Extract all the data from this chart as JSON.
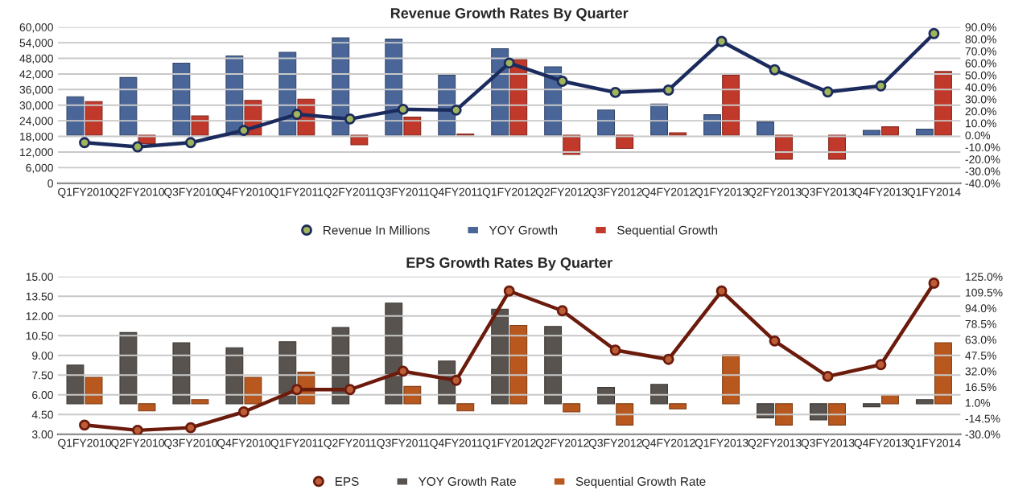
{
  "chart_data": [
    {
      "type": "bar",
      "title": "Revenue Growth Rates By Quarter",
      "categories": [
        "Q1FY2010",
        "Q2FY2010",
        "Q3FY2010",
        "Q4FY2010",
        "Q1FY2011",
        "Q2FY2011",
        "Q3FY2011",
        "Q4FY2011",
        "Q1FY2012",
        "Q2FY2012",
        "Q3FY2012",
        "Q4FY2012",
        "Q1FY2013",
        "Q2FY2013",
        "Q3FY2013",
        "Q4FY2013",
        "Q1FY2014"
      ],
      "series": [
        {
          "name": "Revenue In Millions",
          "type": "line",
          "color": "#1b2b5e",
          "values": [
            15600,
            14000,
            15600,
            20300,
            26500,
            24700,
            28400,
            28100,
            46200,
            39200,
            34900,
            35800,
            54500,
            43600,
            35100,
            37400,
            57500
          ]
        },
        {
          "name": "YOY Growth",
          "axis": "y2",
          "color": "#4a6699",
          "values": [
            32,
            48,
            60,
            66,
            69,
            81,
            80,
            50,
            72,
            57,
            21,
            26,
            17,
            11,
            null,
            4,
            5
          ]
        },
        {
          "name": "Sequential Growth",
          "axis": "y2",
          "color": "#c0392b",
          "values": [
            28,
            -7,
            16,
            29,
            30,
            -8,
            15,
            1,
            63,
            -16,
            -11,
            2,
            50,
            -20,
            -20,
            7,
            53
          ]
        }
      ],
      "ylim": [
        0,
        60000
      ],
      "yticks": [
        0,
        {
          "value": 6000,
          "label": "6,000"
        },
        {
          "value": 12000,
          "label": "12,000"
        },
        {
          "value": 18000,
          "label": "18,000"
        },
        {
          "value": 24000,
          "label": "24,000"
        },
        {
          "value": 30000,
          "label": "30,000"
        },
        {
          "value": 36000,
          "label": "36,000"
        },
        {
          "value": 42000,
          "label": "42,000"
        },
        {
          "value": 48000,
          "label": "48,000"
        },
        {
          "value": 54000,
          "label": "54,000"
        },
        {
          "value": 60000,
          "label": "60,000"
        }
      ],
      "y2lim": [
        -40,
        90
      ],
      "y2ticks": [
        {
          "value": -40,
          "label": "-40.0%"
        },
        {
          "value": -30,
          "label": "-30.0%"
        },
        {
          "value": -20,
          "label": "-20.0%"
        },
        {
          "value": -10,
          "label": "-10.0%"
        },
        {
          "value": 0,
          "label": "0.0%"
        },
        {
          "value": 10,
          "label": "10.0%"
        },
        {
          "value": 20,
          "label": "20.0%"
        },
        {
          "value": 30,
          "label": "30.0%"
        },
        {
          "value": 40,
          "label": "40.0%"
        },
        {
          "value": 50,
          "label": "50.0%"
        },
        {
          "value": 60,
          "label": "60.0%"
        },
        {
          "value": 70,
          "label": "70.0%"
        },
        {
          "value": 80,
          "label": "80.0%"
        },
        {
          "value": 90,
          "label": "90.0%"
        }
      ],
      "grid": "y",
      "legend": "bottom",
      "marker": "circle"
    },
    {
      "type": "bar",
      "title": "EPS Growth Rates By Quarter",
      "categories": [
        "Q1FY2010",
        "Q2FY2010",
        "Q3FY2010",
        "Q4FY2010",
        "Q1FY2011",
        "Q2FY2011",
        "Q3FY2011",
        "Q4FY2011",
        "Q1FY2012",
        "Q2FY2012",
        "Q3FY2012",
        "Q4FY2012",
        "Q1FY2013",
        "Q2FY2013",
        "Q3FY2013",
        "Q4FY2013",
        "Q1FY2014"
      ],
      "series": [
        {
          "name": "EPS",
          "type": "line",
          "color": "#6b1a0c",
          "values": [
            3.7,
            3.3,
            3.5,
            4.7,
            6.4,
            6.4,
            7.8,
            7.1,
            13.9,
            12.4,
            9.4,
            8.7,
            13.9,
            10.1,
            7.4,
            8.3,
            14.5
          ]
        },
        {
          "name": "YOY Growth Rate",
          "axis": "y2",
          "color": "#58534e",
          "values": [
            38,
            70,
            60,
            55,
            61,
            75,
            99,
            42,
            93,
            76,
            16,
            19,
            null,
            -14,
            -16,
            -3,
            4
          ]
        },
        {
          "name": "Sequential Growth Rate",
          "axis": "y2",
          "color": "#b8581e",
          "values": [
            26,
            -7,
            4,
            26,
            31,
            null,
            17,
            -7,
            77,
            -8,
            -21,
            -5,
            48,
            -21,
            -21,
            9,
            60
          ]
        }
      ],
      "ylim": [
        3,
        15
      ],
      "yticks": [
        {
          "value": 3,
          "label": "3.00"
        },
        {
          "value": 4.5,
          "label": "4.50"
        },
        {
          "value": 6,
          "label": "6.00"
        },
        {
          "value": 7.5,
          "label": "7.50"
        },
        {
          "value": 9,
          "label": "9.00"
        },
        {
          "value": 10.5,
          "label": "10.50"
        },
        {
          "value": 12,
          "label": "12.00"
        },
        {
          "value": 13.5,
          "label": "13.50"
        },
        {
          "value": 15,
          "label": "15.00"
        }
      ],
      "y2lim": [
        -30,
        125
      ],
      "y2ticks": [
        {
          "value": -30,
          "label": "-30.0%"
        },
        {
          "value": -14.5,
          "label": "-14.5%"
        },
        {
          "value": 1,
          "label": "1.0%"
        },
        {
          "value": 16.5,
          "label": "16.5%"
        },
        {
          "value": 32,
          "label": "32.0%"
        },
        {
          "value": 47.5,
          "label": "47.5%"
        },
        {
          "value": 63,
          "label": "63.0%"
        },
        {
          "value": 78.5,
          "label": "78.5%"
        },
        {
          "value": 94,
          "label": "94.0%"
        },
        {
          "value": 109.5,
          "label": "109.5%"
        },
        {
          "value": 125,
          "label": "125.0%"
        }
      ],
      "grid": "y",
      "legend": "bottom",
      "marker": "circle"
    }
  ]
}
